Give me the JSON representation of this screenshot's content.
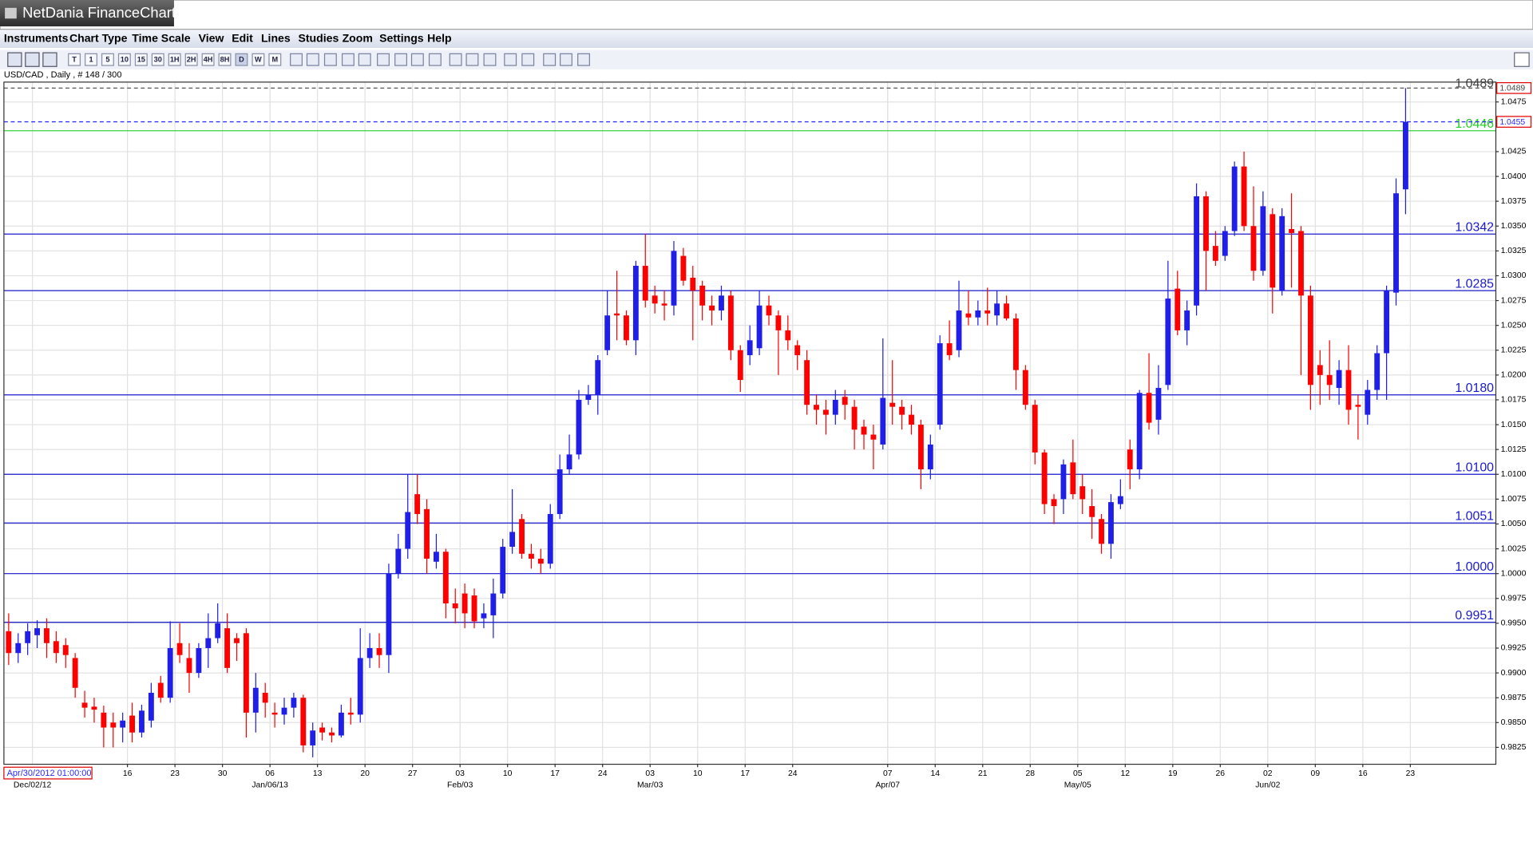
{
  "window": {
    "title": "NetDania FinanceChart"
  },
  "menu": [
    "Instruments",
    "Chart Type",
    "Time Scale",
    "View",
    "Edit",
    "Lines",
    "Studies",
    "Zoom",
    "Settings",
    "Help"
  ],
  "toolbar": [
    "T",
    "1",
    "5",
    "10",
    "15",
    "30",
    "1H",
    "2H",
    "4H",
    "8H",
    "D",
    "W",
    "M"
  ],
  "chart_data": {
    "type": "candlestick",
    "title": "USD/CAD , Daily , # 148 / 300",
    "cursor_label": "Apr/30/2012 01:00:00",
    "up_color": "#1f1fe8",
    "down_color": "#ff0000",
    "grid": true,
    "xlim": [
      -0.5,
      156.5
    ],
    "ylim": [
      0.9808,
      1.0495
    ],
    "x": [
      0,
      1,
      2,
      3,
      4,
      5,
      6,
      7,
      8,
      9,
      10,
      11,
      12,
      13,
      14,
      15,
      16,
      17,
      18,
      19,
      20,
      21,
      22,
      23,
      24,
      25,
      26,
      27,
      28,
      29,
      30,
      31,
      32,
      33,
      34,
      35,
      36,
      37,
      38,
      39,
      40,
      41,
      42,
      43,
      44,
      45,
      46,
      47,
      48,
      49,
      50,
      51,
      52,
      53,
      54,
      55,
      56,
      57,
      58,
      59,
      60,
      61,
      62,
      63,
      64,
      65,
      66,
      67,
      68,
      69,
      70,
      71,
      72,
      73,
      74,
      75,
      76,
      77,
      78,
      79,
      80,
      81,
      82,
      83,
      84,
      85,
      86,
      87,
      88,
      89,
      90,
      91,
      92,
      93,
      94,
      95,
      96,
      97,
      98,
      99,
      100,
      101,
      102,
      103,
      104,
      105,
      106,
      107,
      108,
      109,
      110,
      111,
      112,
      113,
      114,
      115,
      116,
      117,
      118,
      119,
      120,
      121,
      122,
      123,
      124,
      125,
      126,
      127,
      128,
      129,
      130,
      131,
      132,
      133,
      134,
      135,
      136,
      137,
      138,
      139,
      140,
      141,
      142,
      143,
      144,
      145,
      146,
      147
    ],
    "open": [
      0.9942,
      0.992,
      0.993,
      0.9938,
      0.9945,
      0.9932,
      0.9928,
      0.9915,
      0.987,
      0.9866,
      0.986,
      0.985,
      0.9845,
      0.9857,
      0.984,
      0.9852,
      0.989,
      0.9875,
      0.993,
      0.9915,
      0.99,
      0.9925,
      0.9935,
      0.9945,
      0.9935,
      0.994,
      0.986,
      0.988,
      0.986,
      0.9858,
      0.9865,
      0.9875,
      0.9827,
      0.9845,
      0.984,
      0.9837,
      0.986,
      0.9858,
      0.9915,
      0.9925,
      0.9918,
      1.0,
      1.0025,
      1.008,
      1.0065,
      1.0012,
      1.0022,
      0.997,
      0.998,
      0.9978,
      0.9955,
      0.9958,
      0.998,
      1.0027,
      1.0055,
      1.002,
      1.0015,
      1.001,
      1.006,
      1.0105,
      1.012,
      1.0175,
      1.018,
      1.0225,
      1.0262,
      1.026,
      1.0235,
      1.031,
      1.028,
      1.0272,
      1.027,
      1.032,
      1.0298,
      1.029,
      1.027,
      1.0265,
      1.028,
      1.0225,
      1.022,
      1.0227,
      1.027,
      1.026,
      1.0245,
      1.023,
      1.0215,
      1.017,
      1.0165,
      1.016,
      1.0178,
      1.0168,
      1.0148,
      1.014,
      1.013,
      1.0172,
      1.0168,
      1.016,
      1.015,
      1.0105,
      1.015,
      1.0232,
      1.0225,
      1.0262,
      1.0258,
      1.0265,
      1.026,
      1.0272,
      1.0257,
      1.0205,
      1.017,
      1.0122,
      1.0075,
      1.0075,
      1.0112,
      1.0088,
      1.0068,
      1.0055,
      1.003,
      1.007,
      1.0125,
      1.0105,
      1.0182,
      1.0155,
      1.019,
      1.0287,
      1.0245,
      1.027,
      1.038,
      1.033,
      1.032,
      1.0345,
      1.041,
      1.035,
      1.0305,
      1.0362,
      1.0285,
      1.0347,
      1.0345,
      1.028,
      1.021,
      1.02,
      1.0187,
      1.0205,
      1.017,
      1.016,
      1.0185,
      1.0222,
      1.0283,
      1.0387
    ],
    "high": [
      0.996,
      0.994,
      0.995,
      0.9953,
      0.9955,
      0.9942,
      0.9935,
      0.992,
      0.9882,
      0.9875,
      0.9867,
      0.986,
      0.986,
      0.987,
      0.9868,
      0.989,
      0.9897,
      0.9952,
      0.995,
      0.993,
      0.993,
      0.996,
      0.997,
      0.996,
      0.994,
      0.9945,
      0.99,
      0.989,
      0.987,
      0.9875,
      0.988,
      0.9878,
      0.985,
      0.985,
      0.9845,
      0.9868,
      0.9875,
      0.9945,
      0.994,
      0.994,
      1.001,
      1.004,
      1.01,
      1.01,
      1.0075,
      1.004,
      1.0025,
      0.9985,
      0.999,
      0.9985,
      0.997,
      0.9995,
      1.0035,
      1.0085,
      1.006,
      1.003,
      1.0025,
      1.007,
      1.012,
      1.014,
      1.0185,
      1.019,
      1.022,
      1.0285,
      1.0305,
      1.0265,
      1.0315,
      1.0342,
      1.029,
      1.0285,
      1.0335,
      1.0328,
      1.031,
      1.0295,
      1.028,
      1.029,
      1.0285,
      1.023,
      1.025,
      1.0285,
      1.028,
      1.0265,
      1.026,
      1.0235,
      1.0225,
      1.018,
      1.0175,
      1.0185,
      1.0185,
      1.0175,
      1.0155,
      1.015,
      1.0237,
      1.0215,
      1.0175,
      1.017,
      1.0155,
      1.014,
      1.024,
      1.0255,
      1.0295,
      1.0285,
      1.0275,
      1.0288,
      1.0285,
      1.028,
      1.0262,
      1.021,
      1.0175,
      1.0125,
      1.008,
      1.0115,
      1.0135,
      1.01,
      1.0085,
      1.006,
      1.008,
      1.0095,
      1.0135,
      1.0185,
      1.0222,
      1.021,
      1.0315,
      1.0305,
      1.0275,
      1.0393,
      1.0385,
      1.0345,
      1.035,
      1.0415,
      1.0425,
      1.039,
      1.0385,
      1.0368,
      1.0368,
      1.0383,
      1.035,
      1.029,
      1.0225,
      1.0235,
      1.0215,
      1.023,
      1.018,
      1.0195,
      1.023,
      1.029,
      1.0398,
      1.0489
    ],
    "low": [
      0.9908,
      0.991,
      0.9918,
      0.9925,
      0.9915,
      0.991,
      0.9905,
      0.9875,
      0.9855,
      0.985,
      0.9825,
      0.9825,
      0.983,
      0.983,
      0.9835,
      0.9845,
      0.987,
      0.987,
      0.991,
      0.988,
      0.9895,
      0.9905,
      0.993,
      0.99,
      0.9912,
      0.9835,
      0.984,
      0.9855,
      0.9845,
      0.9848,
      0.9855,
      0.982,
      0.9815,
      0.9832,
      0.983,
      0.9835,
      0.9848,
      0.985,
      0.9905,
      0.9905,
      0.99,
      0.9995,
      1.0015,
      1.005,
      1.0,
      1.0005,
      0.9955,
      0.995,
      0.9945,
      0.9945,
      0.9945,
      0.9935,
      0.9975,
      1.002,
      1.0015,
      1.0005,
      1.0,
      1.0005,
      1.0055,
      1.01,
      1.0115,
      1.017,
      1.016,
      1.022,
      1.0235,
      1.023,
      1.022,
      1.0268,
      1.0262,
      1.0255,
      1.026,
      1.029,
      1.0235,
      1.0255,
      1.025,
      1.0255,
      1.0215,
      1.0183,
      1.021,
      1.022,
      1.025,
      1.02,
      1.0225,
      1.0205,
      1.016,
      1.015,
      1.014,
      1.015,
      1.0155,
      1.0125,
      1.0125,
      1.0105,
      1.0125,
      1.015,
      1.0145,
      1.014,
      1.0085,
      1.0095,
      1.0145,
      1.0215,
      1.0218,
      1.025,
      1.025,
      1.025,
      1.025,
      1.0255,
      1.0185,
      1.0165,
      1.011,
      1.006,
      1.005,
      1.006,
      1.0075,
      1.006,
      1.0035,
      1.002,
      1.0015,
      1.0065,
      1.0085,
      1.0095,
      1.0145,
      1.014,
      1.0185,
      1.024,
      1.023,
      1.026,
      1.0285,
      1.031,
      1.0315,
      1.034,
      1.0345,
      1.0295,
      1.03,
      1.0262,
      1.028,
      1.0288,
      1.02,
      1.0165,
      1.017,
      1.0175,
      1.017,
      1.015,
      1.0135,
      1.015,
      1.0175,
      1.0175,
      1.027,
      1.0362
    ],
    "close": [
      0.992,
      0.993,
      0.9942,
      0.9945,
      0.993,
      0.992,
      0.9918,
      0.9885,
      0.9865,
      0.9863,
      0.9845,
      0.9845,
      0.9852,
      0.984,
      0.9862,
      0.988,
      0.9875,
      0.9925,
      0.9918,
      0.99,
      0.9925,
      0.9935,
      0.995,
      0.9905,
      0.993,
      0.986,
      0.9885,
      0.987,
      0.9858,
      0.9865,
      0.9875,
      0.9827,
      0.9842,
      0.984,
      0.9837,
      0.986,
      0.9858,
      0.9915,
      0.9925,
      0.9918,
      1.0,
      1.0025,
      1.0062,
      1.006,
      1.0015,
      1.0022,
      0.997,
      0.9965,
      0.996,
      0.9952,
      0.996,
      0.998,
      1.0027,
      1.0042,
      1.002,
      1.0015,
      1.001,
      1.006,
      1.0105,
      1.012,
      1.0175,
      1.018,
      1.0215,
      1.026,
      1.026,
      1.0235,
      1.031,
      1.0275,
      1.0272,
      1.027,
      1.0325,
      1.0295,
      1.0285,
      1.027,
      1.0265,
      1.028,
      1.0225,
      1.0195,
      1.0235,
      1.027,
      1.026,
      1.0245,
      1.0235,
      1.022,
      1.017,
      1.0165,
      1.016,
      1.0175,
      1.017,
      1.0145,
      1.014,
      1.0135,
      1.0177,
      1.0168,
      1.016,
      1.015,
      1.0105,
      1.013,
      1.0232,
      1.022,
      1.0265,
      1.0258,
      1.0265,
      1.0262,
      1.0272,
      1.0257,
      1.0205,
      1.017,
      1.0122,
      1.007,
      1.0068,
      1.011,
      1.008,
      1.0075,
      1.0057,
      1.003,
      1.0072,
      1.0078,
      1.0105,
      1.0182,
      1.0152,
      1.0187,
      1.0277,
      1.0245,
      1.0265,
      1.038,
      1.0325,
      1.0315,
      1.0345,
      1.041,
      1.035,
      1.0305,
      1.037,
      1.0288,
      1.036,
      1.0343,
      1.028,
      1.019,
      1.02,
      1.019,
      1.0205,
      1.0165,
      1.0168,
      1.0185,
      1.0222,
      1.0285,
      1.0383,
      1.0455
    ],
    "yticks": [
      0.9825,
      {
        "value": 0.985,
        "label": "0.9850"
      },
      0.9875,
      {
        "value": 0.99,
        "label": "0.9900"
      },
      0.9925,
      {
        "value": 0.995,
        "label": "0.9950"
      },
      0.9975,
      {
        "value": 1,
        "label": "1.0000"
      },
      1.0025,
      {
        "value": 1.005,
        "label": "1.0050"
      },
      1.0075,
      {
        "value": 1.01,
        "label": "1.0100"
      },
      1.0125,
      {
        "value": 1.015,
        "label": "1.0150"
      },
      1.0175,
      {
        "value": 1.02,
        "label": "1.0200"
      },
      1.0225,
      {
        "value": 1.025,
        "label": "1.0250"
      },
      1.0275,
      {
        "value": 1.03,
        "label": "1.0300"
      },
      1.0325,
      {
        "value": 1.035,
        "label": "1.0350"
      },
      1.0375,
      {
        "value": 1.04,
        "label": "1.0400"
      },
      1.0425,
      1.0475
    ],
    "xticks": [
      {
        "value": 12.5,
        "label": "16"
      },
      {
        "value": 17.5,
        "label": "23"
      },
      {
        "value": 22.5,
        "label": "30"
      },
      {
        "value": 27.5,
        "label": "06"
      },
      {
        "value": 32.5,
        "label": "13"
      },
      {
        "value": 37.5,
        "label": "20"
      },
      {
        "value": 42.5,
        "label": "27"
      },
      {
        "value": 47.5,
        "label": "03"
      },
      {
        "value": 52.5,
        "label": "10"
      },
      {
        "value": 57.5,
        "label": "17"
      },
      {
        "value": 62.5,
        "label": "24"
      },
      {
        "value": 67.5,
        "label": "03"
      },
      {
        "value": 72.5,
        "label": "10"
      },
      {
        "value": 77.5,
        "label": "17"
      },
      {
        "value": 82.5,
        "label": "24"
      },
      {
        "value": 92.5,
        "label": "07"
      },
      {
        "value": 97.5,
        "label": "14"
      },
      {
        "value": 102.5,
        "label": "21"
      },
      {
        "value": 107.5,
        "label": "28"
      },
      {
        "value": 112.5,
        "label": "05"
      },
      {
        "value": 117.5,
        "label": "12"
      },
      {
        "value": 122.5,
        "label": "19"
      },
      {
        "value": 127.5,
        "label": "26"
      },
      {
        "value": 132.5,
        "label": "02"
      },
      {
        "value": 137.5,
        "label": "09"
      },
      {
        "value": 142.5,
        "label": "16"
      },
      {
        "value": 147.5,
        "label": "23"
      }
    ],
    "xticks_month": [
      {
        "value": 2.5,
        "label": "Dec/02/12"
      },
      {
        "value": 27.5,
        "label": "Jan/06/13"
      },
      {
        "value": 47.5,
        "label": "Feb/03"
      },
      {
        "value": 67.5,
        "label": "Mar/03"
      },
      {
        "value": 92.5,
        "label": "Apr/07"
      },
      {
        "value": 112.5,
        "label": "May/05"
      },
      {
        "value": 132.5,
        "label": "Jun/02"
      }
    ],
    "levels": [
      {
        "value": 1.0342,
        "label": "1.0342",
        "color": "#1a1acc"
      },
      {
        "value": 1.0285,
        "label": "1.0285",
        "color": "#1a1acc"
      },
      {
        "value": 1.018,
        "label": "1.0180",
        "color": "#1a1acc"
      },
      {
        "value": 1.01,
        "label": "1.0100",
        "color": "#1a1acc"
      },
      {
        "value": 1.0051,
        "label": "1.0051",
        "color": "#1a1acc"
      },
      {
        "value": 1,
        "label": "1.0000",
        "color": "#1a1acc"
      },
      {
        "value": 0.9951,
        "label": "0.9951",
        "color": "#1a1acc"
      },
      {
        "value": 1.0446,
        "label": "1.0446",
        "color": "#22cc22"
      }
    ],
    "markers": [
      {
        "value": 1.0489,
        "label": "1.0489",
        "color": "#444444",
        "dashed": true,
        "inline": true
      },
      {
        "value": 1.0455,
        "label": "1.0455",
        "color": "#2a2aff",
        "dashed": true,
        "inline": false
      }
    ]
  }
}
